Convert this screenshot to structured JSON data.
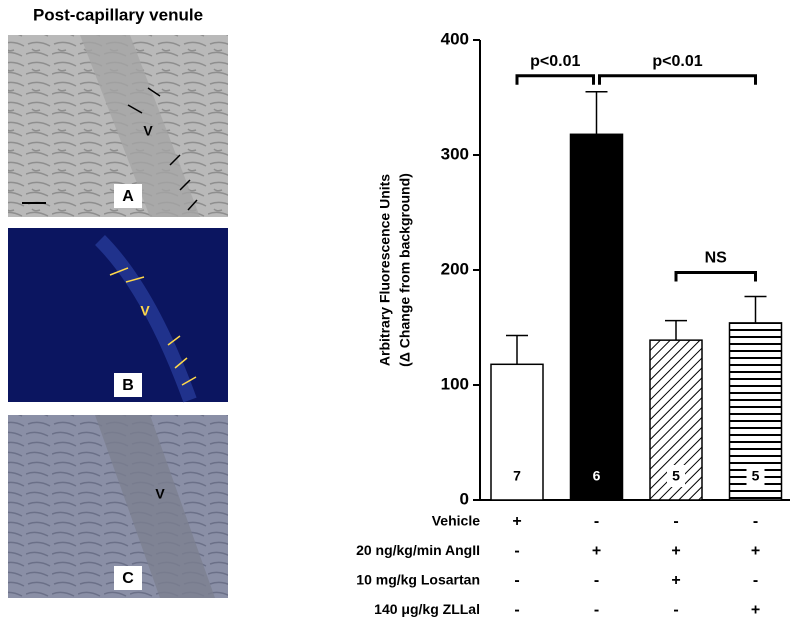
{
  "figure_title": "Post-capillary venule",
  "panels": [
    {
      "label": "A",
      "vessel": "V"
    },
    {
      "label": "B",
      "vessel": "V"
    },
    {
      "label": "C",
      "vessel": "V"
    }
  ],
  "chart_data": {
    "type": "bar",
    "ylabel": [
      "Arbitrary Fluorescence Units",
      "(Δ Change from background)"
    ],
    "values": [
      118,
      318,
      139,
      154
    ],
    "errors": [
      25,
      37,
      17,
      23
    ],
    "n": [
      7,
      6,
      5,
      5
    ],
    "fills": [
      "white",
      "black",
      "diagonal",
      "horizontal"
    ],
    "ylim": [
      0,
      400
    ],
    "yticks": [
      0,
      100,
      200,
      300,
      400
    ],
    "comparisons": [
      {
        "from": 0,
        "to": 1,
        "label": "p<0.01"
      },
      {
        "from": 1,
        "to": 3,
        "label": "p<0.01"
      },
      {
        "from": 2,
        "to": 3,
        "label": "NS"
      }
    ],
    "treatments": [
      {
        "label": "Vehicle",
        "signs": [
          "+",
          "-",
          "-",
          "-"
        ]
      },
      {
        "label": "20 ng/kg/min AngII",
        "signs": [
          "-",
          "+",
          "+",
          "+"
        ]
      },
      {
        "label": "10 mg/kg Losartan",
        "signs": [
          "-",
          "-",
          "+",
          "-"
        ]
      },
      {
        "label": "140 μg/kg ZLLal",
        "signs": [
          "-",
          "-",
          "-",
          "+"
        ]
      }
    ]
  }
}
